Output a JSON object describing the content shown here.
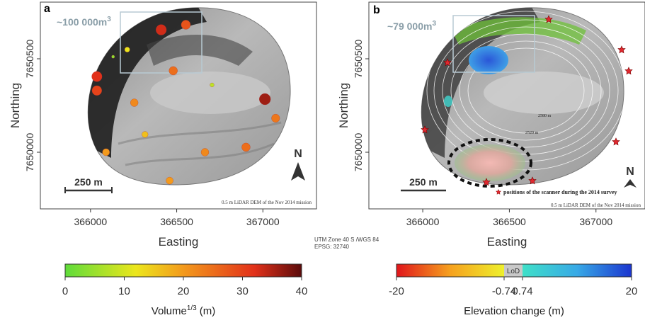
{
  "panels": [
    {
      "letter": "a",
      "volume_text": "~100 000m",
      "volume_sup": "3",
      "scale_bar": "250 m",
      "north": "N",
      "dem_note": "0.5 m LiDAR DEM of the Nov 2014 mission",
      "x_label": "Easting",
      "y_label": "Northing",
      "xlim": [
        365709,
        367311
      ],
      "ylim": [
        7649697,
        7650803
      ],
      "xticks": [
        366000,
        366500,
        367000
      ],
      "yticks": [
        7650000,
        7650500
      ],
      "points": {
        "easting": [
          367012,
          366037,
          366037,
          366410,
          366553,
          366480,
          366254,
          367074,
          366090,
          366664,
          366459,
          366316,
          366902,
          366213,
          366705,
          366131
        ],
        "northing": [
          7650284,
          7650405,
          7650330,
          7650655,
          7650682,
          7650436,
          7650265,
          7650182,
          7650000,
          7650000,
          7649848,
          7650095,
          7650027,
          7650549,
          7650360,
          7650511
        ],
        "volume": [
          36,
          32,
          30,
          33,
          28,
          25,
          22,
          24,
          20,
          22,
          20,
          16,
          25,
          12,
          8,
          4
        ]
      }
    },
    {
      "letter": "b",
      "volume_text": "~79 000m",
      "volume_sup": "3",
      "scale_bar": "250 m",
      "north": "N",
      "dem_note": "0.5 m LiDAR DEM of the Nov 2014 mission",
      "x_label": "Easting",
      "y_label": "Northing",
      "xlim": [
        365689,
        367283
      ],
      "ylim": [
        7649697,
        7650803
      ],
      "xticks": [
        366000,
        366500,
        367000
      ],
      "yticks": [
        7650000,
        7650500
      ],
      "contour_labels": [
        "2580 m",
        "2520 m"
      ],
      "legend": "positions of the scanner during the 2014 survey"
    }
  ],
  "projection": [
    "UTM Zone 40 S /WGS 84",
    "EPSG: 32740"
  ],
  "colorbars": [
    {
      "label": "Volume",
      "label_sup": "1/3",
      "label_unit": "(m)",
      "lim": [
        0,
        40
      ],
      "ticks": [
        0,
        10,
        20,
        30,
        40
      ]
    },
    {
      "label": "Elevation change (m)",
      "lim": [
        -20,
        20
      ],
      "lod": [
        -0.74,
        0.74
      ],
      "lod_label": "LoD",
      "ticks": [
        -20,
        -0.74,
        0.74,
        20
      ]
    }
  ]
}
